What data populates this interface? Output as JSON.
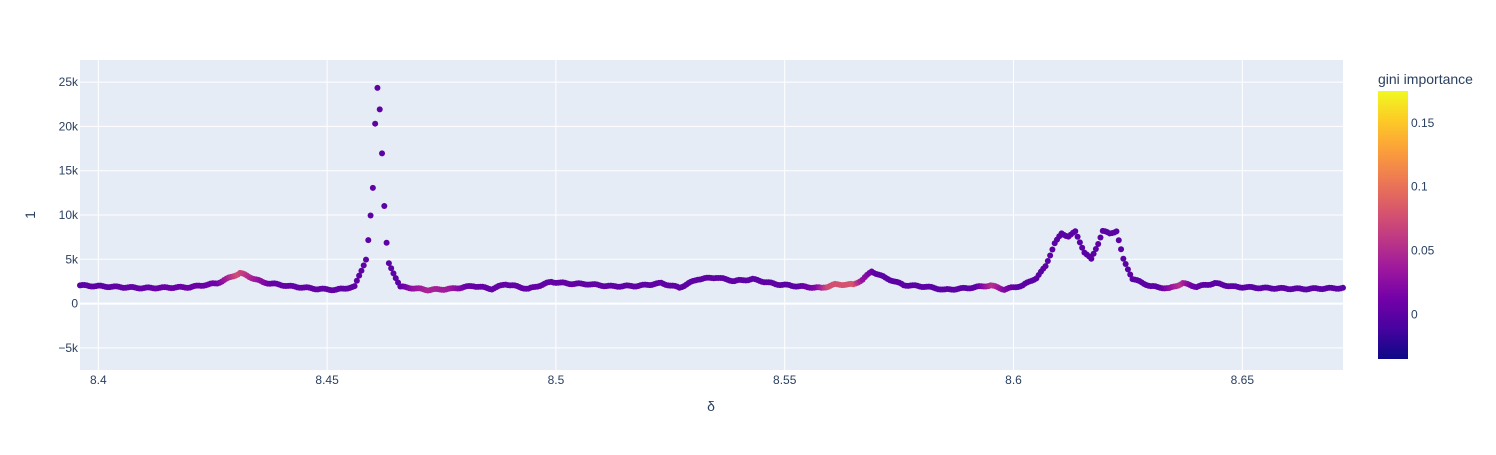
{
  "chart_data": {
    "type": "scatter",
    "xlabel": "δ",
    "ylabel": "1",
    "xlim": [
      8.396,
      8.672
    ],
    "ylim": [
      -7500,
      27500
    ],
    "grid": true,
    "x_ticks": [
      8.4,
      8.45,
      8.5,
      8.55,
      8.6,
      8.65
    ],
    "x_tick_labels": [
      "8.4",
      "8.45",
      "8.5",
      "8.55",
      "8.6",
      "8.65"
    ],
    "y_ticks": [
      -5000,
      0,
      5000,
      10000,
      15000,
      20000,
      25000
    ],
    "y_tick_labels": [
      "−5k",
      "0",
      "5k",
      "10k",
      "15k",
      "20k",
      "25k"
    ],
    "colorbar": {
      "title": "gini importance",
      "range": [
        -0.035,
        0.175
      ],
      "ticks": [
        0,
        0.05,
        0.1,
        0.15
      ],
      "tick_labels": [
        "0",
        "0.05",
        "0.1",
        "0.15"
      ],
      "colorscale": [
        "#0d0887",
        "#46039f",
        "#7201a8",
        "#9c179e",
        "#bd3786",
        "#d8576b",
        "#ed7953",
        "#fb9f3a",
        "#fdca26",
        "#f0f921"
      ]
    },
    "x_step": 0.0005,
    "x_start": 8.396,
    "profile_points": [
      [
        8.396,
        2050
      ],
      [
        8.41,
        1750
      ],
      [
        8.42,
        1850
      ],
      [
        8.426,
        2300
      ],
      [
        8.431,
        3450
      ],
      [
        8.436,
        2400
      ],
      [
        8.442,
        1950
      ],
      [
        8.448,
        1650
      ],
      [
        8.452,
        1550
      ],
      [
        8.456,
        1900
      ],
      [
        8.4585,
        5000
      ],
      [
        8.4592,
        8000
      ],
      [
        8.46,
        13000
      ],
      [
        8.4605,
        20300
      ],
      [
        8.461,
        24400
      ],
      [
        8.4615,
        22000
      ],
      [
        8.462,
        17000
      ],
      [
        8.4625,
        11000
      ],
      [
        8.463,
        6800
      ],
      [
        8.4635,
        4500
      ],
      [
        8.466,
        1900
      ],
      [
        8.472,
        1550
      ],
      [
        8.477,
        1650
      ],
      [
        8.482,
        2000
      ],
      [
        8.486,
        1650
      ],
      [
        8.489,
        2200
      ],
      [
        8.494,
        1650
      ],
      [
        8.499,
        2450
      ],
      [
        8.503,
        2250
      ],
      [
        8.507,
        2200
      ],
      [
        8.512,
        1950
      ],
      [
        8.518,
        2000
      ],
      [
        8.523,
        2300
      ],
      [
        8.527,
        1800
      ],
      [
        8.531,
        2750
      ],
      [
        8.535,
        2950
      ],
      [
        8.539,
        2550
      ],
      [
        8.543,
        2750
      ],
      [
        8.548,
        2200
      ],
      [
        8.553,
        1950
      ],
      [
        8.558,
        1750
      ],
      [
        8.561,
        2150
      ],
      [
        8.565,
        2150
      ],
      [
        8.567,
        2700
      ],
      [
        8.569,
        3650
      ],
      [
        8.572,
        2900
      ],
      [
        8.576,
        2100
      ],
      [
        8.581,
        1900
      ],
      [
        8.585,
        1550
      ],
      [
        8.59,
        1750
      ],
      [
        8.595,
        2050
      ],
      [
        8.598,
        1600
      ],
      [
        8.602,
        2050
      ],
      [
        8.605,
        2900
      ],
      [
        8.607,
        4200
      ],
      [
        8.609,
        6800
      ],
      [
        8.6105,
        7900
      ],
      [
        8.612,
        7600
      ],
      [
        8.6135,
        8100
      ],
      [
        8.6155,
        5800
      ],
      [
        8.617,
        5000
      ],
      [
        8.6185,
        6800
      ],
      [
        8.6195,
        8200
      ],
      [
        8.621,
        7900
      ],
      [
        8.6225,
        8200
      ],
      [
        8.624,
        5000
      ],
      [
        8.626,
        2800
      ],
      [
        8.63,
        1950
      ],
      [
        8.634,
        1700
      ],
      [
        8.637,
        2300
      ],
      [
        8.64,
        1900
      ],
      [
        8.644,
        2300
      ],
      [
        8.648,
        1900
      ],
      [
        8.655,
        1750
      ],
      [
        8.663,
        1650
      ],
      [
        8.672,
        1750
      ]
    ],
    "importance_points": [
      [
        8.396,
        0.0
      ],
      [
        8.426,
        0.01
      ],
      [
        8.4305,
        0.075
      ],
      [
        8.434,
        0.04
      ],
      [
        8.438,
        0.005
      ],
      [
        8.466,
        0.0
      ],
      [
        8.469,
        0.03
      ],
      [
        8.472,
        0.045
      ],
      [
        8.477,
        0.035
      ],
      [
        8.481,
        0.005
      ],
      [
        8.553,
        0.0
      ],
      [
        8.557,
        0.02
      ],
      [
        8.5595,
        0.075
      ],
      [
        8.565,
        0.08
      ],
      [
        8.567,
        0.03
      ],
      [
        8.57,
        0.0
      ],
      [
        8.592,
        0.0
      ],
      [
        8.5955,
        0.055
      ],
      [
        8.598,
        0.02
      ],
      [
        8.601,
        0.0
      ],
      [
        8.632,
        0.0
      ],
      [
        8.6345,
        0.03
      ],
      [
        8.6365,
        0.055
      ],
      [
        8.639,
        0.01
      ],
      [
        8.642,
        0.0
      ],
      [
        8.672,
        0.0
      ]
    ]
  }
}
